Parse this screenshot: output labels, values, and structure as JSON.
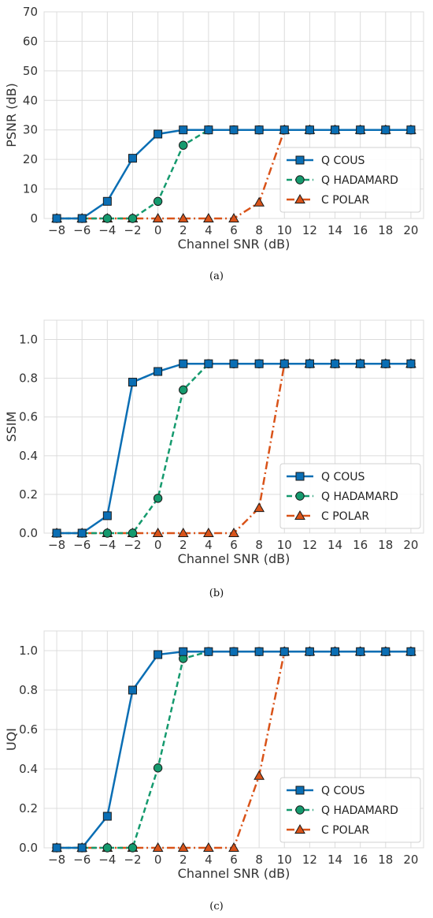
{
  "colors": {
    "Q COUS": "#0a6eb4",
    "Q HADAMARD": "#159a6e",
    "C POLAR": "#d95319"
  },
  "chart_data": [
    {
      "type": "line",
      "caption": "(a)",
      "xlabel": "Channel SNR (dB)",
      "ylabel": "PSNR (dB)",
      "x": [
        -8,
        -6,
        -4,
        -2,
        0,
        2,
        4,
        6,
        8,
        10,
        12,
        14,
        16,
        18,
        20
      ],
      "xticks": [
        "−8",
        "−6",
        "−4",
        "−2",
        "0",
        "2",
        "4",
        "6",
        "8",
        "10",
        "12",
        "14",
        "16",
        "18",
        "20"
      ],
      "ylim": [
        0,
        70
      ],
      "yticks": [
        0,
        10,
        20,
        30,
        40,
        50,
        60,
        70
      ],
      "ytick_labels": [
        "0",
        "10",
        "20",
        "30",
        "40",
        "50",
        "60",
        "70"
      ],
      "grid": true,
      "legend": "center-right",
      "series": [
        {
          "name": "Q COUS",
          "marker": "square",
          "dash": "solid",
          "values": [
            0,
            0,
            5.8,
            20.4,
            28.6,
            30,
            30,
            30,
            30,
            30,
            30,
            30,
            30,
            30,
            30
          ]
        },
        {
          "name": "Q HADAMARD",
          "marker": "circle",
          "dash": "dashed",
          "values": [
            0,
            0,
            0,
            0,
            5.8,
            24.8,
            30,
            30,
            30,
            30,
            30,
            30,
            30,
            30,
            30
          ]
        },
        {
          "name": "C POLAR",
          "marker": "triangle",
          "dash": "dashdot",
          "values": [
            0,
            0,
            0,
            0,
            0,
            0,
            0,
            0,
            5.4,
            30,
            30,
            30,
            30,
            30,
            30
          ]
        }
      ]
    },
    {
      "type": "line",
      "caption": "(b)",
      "xlabel": "Channel SNR (dB)",
      "ylabel": "SSIM",
      "x": [
        -8,
        -6,
        -4,
        -2,
        0,
        2,
        4,
        6,
        8,
        10,
        12,
        14,
        16,
        18,
        20
      ],
      "xticks": [
        "−8",
        "−6",
        "−4",
        "−2",
        "0",
        "2",
        "4",
        "6",
        "8",
        "10",
        "12",
        "14",
        "16",
        "18",
        "20"
      ],
      "ylim": [
        0,
        1.1
      ],
      "yticks": [
        0,
        0.2,
        0.4,
        0.6,
        0.8,
        1.0
      ],
      "ytick_labels": [
        "0.0",
        "0.2",
        "0.4",
        "0.6",
        "0.8",
        "1.0"
      ],
      "grid": true,
      "legend": "lower-right",
      "series": [
        {
          "name": "Q COUS",
          "marker": "square",
          "dash": "solid",
          "values": [
            0,
            0,
            0.09,
            0.78,
            0.835,
            0.875,
            0.875,
            0.875,
            0.875,
            0.875,
            0.875,
            0.875,
            0.875,
            0.875,
            0.875
          ]
        },
        {
          "name": "Q HADAMARD",
          "marker": "circle",
          "dash": "dashed",
          "values": [
            0,
            0,
            0,
            0,
            0.18,
            0.74,
            0.875,
            0.875,
            0.875,
            0.875,
            0.875,
            0.875,
            0.875,
            0.875,
            0.875
          ]
        },
        {
          "name": "C POLAR",
          "marker": "triangle",
          "dash": "dashdot",
          "values": [
            0,
            0,
            0,
            0,
            0,
            0,
            0,
            0,
            0.13,
            0.875,
            0.875,
            0.875,
            0.875,
            0.875,
            0.875
          ]
        }
      ]
    },
    {
      "type": "line",
      "caption": "(c)",
      "xlabel": "Channel SNR (dB)",
      "ylabel": "UQI",
      "x": [
        -8,
        -6,
        -4,
        -2,
        0,
        2,
        4,
        6,
        8,
        10,
        12,
        14,
        16,
        18,
        20
      ],
      "xticks": [
        "−8",
        "−6",
        "−4",
        "−2",
        "0",
        "2",
        "4",
        "6",
        "8",
        "10",
        "12",
        "14",
        "16",
        "18",
        "20"
      ],
      "ylim": [
        0,
        1.1
      ],
      "yticks": [
        0,
        0.2,
        0.4,
        0.6,
        0.8,
        1.0
      ],
      "ytick_labels": [
        "0.0",
        "0.2",
        "0.4",
        "0.6",
        "0.8",
        "1.0"
      ],
      "grid": true,
      "legend": "lower-right",
      "series": [
        {
          "name": "Q COUS",
          "marker": "square",
          "dash": "solid",
          "values": [
            0,
            0,
            0.16,
            0.8,
            0.98,
            0.995,
            0.995,
            0.995,
            0.995,
            0.995,
            0.995,
            0.995,
            0.995,
            0.995,
            0.995
          ]
        },
        {
          "name": "Q HADAMARD",
          "marker": "circle",
          "dash": "dashed",
          "values": [
            0,
            0,
            0,
            0,
            0.405,
            0.96,
            0.995,
            0.995,
            0.995,
            0.995,
            0.995,
            0.995,
            0.995,
            0.995,
            0.995
          ]
        },
        {
          "name": "C POLAR",
          "marker": "triangle",
          "dash": "dashdot",
          "values": [
            0,
            0,
            0,
            0,
            0,
            0,
            0,
            0,
            0.365,
            0.995,
            0.995,
            0.995,
            0.995,
            0.995,
            0.995
          ]
        }
      ]
    }
  ]
}
